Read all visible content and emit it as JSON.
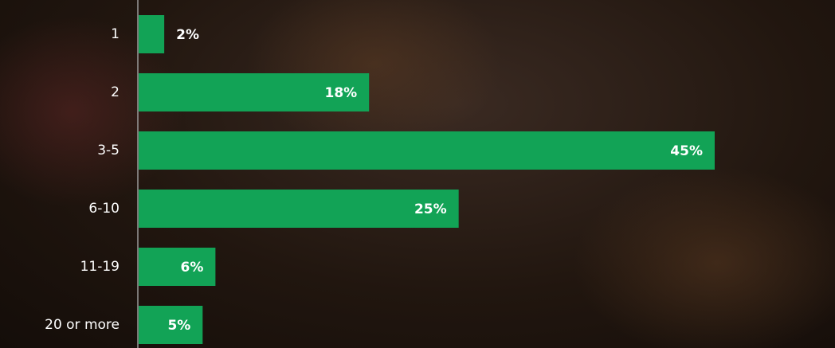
{
  "chart_data": {
    "type": "bar",
    "orientation": "horizontal",
    "categories": [
      "1",
      "2",
      "3-5",
      "6-10",
      "11-19",
      "20 or more"
    ],
    "values": [
      2,
      18,
      45,
      25,
      6,
      5
    ],
    "value_labels": [
      "2%",
      "18%",
      "45%",
      "25%",
      "6%",
      "5%"
    ],
    "color": "#12a356"
  }
}
